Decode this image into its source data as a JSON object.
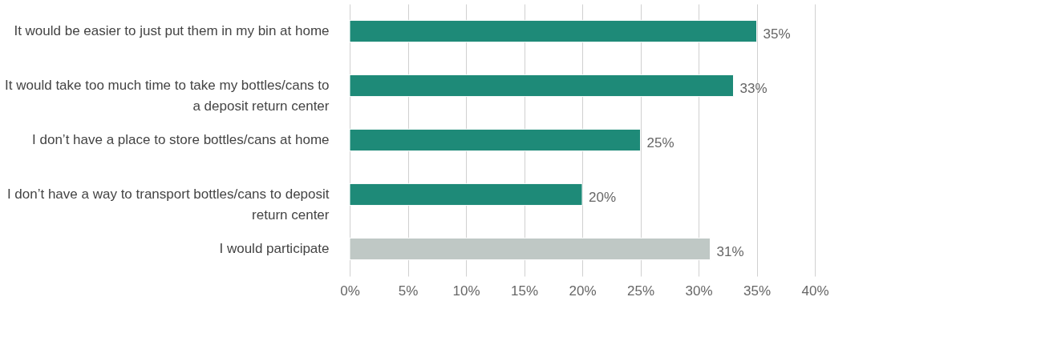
{
  "chart_data": {
    "type": "bar",
    "orientation": "horizontal",
    "categories": [
      "It would be easier to just put them in my bin at home",
      "It would take too much time to take my bottles/cans to\na deposit return center",
      "I don’t have a place to store bottles/cans at home",
      "I don’t have a way to transport bottles/cans to deposit\nreturn center",
      "I would participate"
    ],
    "values": [
      35,
      33,
      25,
      20,
      31
    ],
    "colors": [
      "#1e8a78",
      "#1e8a78",
      "#1e8a78",
      "#1e8a78",
      "#bfc8c5"
    ],
    "value_labels": [
      "35%",
      "33%",
      "25%",
      "20%",
      "31%"
    ],
    "xlim": [
      0,
      40
    ],
    "xticks": [
      {
        "value": 0,
        "label": "0%"
      },
      {
        "value": 5,
        "label": "5%"
      },
      {
        "value": 10,
        "label": "10%"
      },
      {
        "value": 15,
        "label": "15%"
      },
      {
        "value": 20,
        "label": "20%"
      },
      {
        "value": 25,
        "label": "25%"
      },
      {
        "value": 30,
        "label": "30%"
      },
      {
        "value": 35,
        "label": "35%"
      },
      {
        "value": 40,
        "label": "40%"
      }
    ],
    "grid": "x"
  }
}
